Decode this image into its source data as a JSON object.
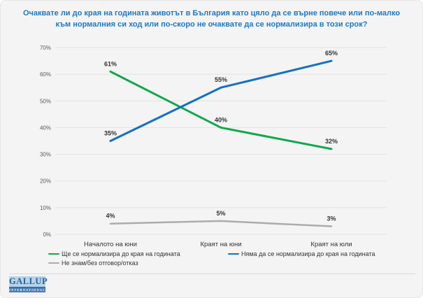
{
  "title": "Очаквате ли до края на годината животът в България като цяло да се върне повече или по-малко към нормалния си ход или по-скоро не очаквате да се нормализира в този срок?",
  "colors": {
    "title": "#1c78c5",
    "background": "#f4f4f4",
    "grid": "#e2e2e2",
    "axis_text": "#595959",
    "label_text": "#333333",
    "divider": "#d8d8d8",
    "series_green": "#0ea84b",
    "series_blue": "#1470c4",
    "series_gray": "#acacac"
  },
  "chart_data": {
    "type": "line",
    "title": "Очаквате ли до края на годината животът в България като цяло да се върне повече или по-малко към нормалния си ход или по-скоро не очаквате да се нормализира в този срок?",
    "categories": [
      "Началото на юни",
      "Краят на юни",
      "Краят на юли"
    ],
    "series": [
      {
        "name": "Ще се нормализира до края на годината",
        "values": [
          61,
          40,
          32
        ],
        "labels": [
          "61%",
          "40%",
          "32%"
        ],
        "color": "#0ea84b"
      },
      {
        "name": "Няма да се нормализира до края на годината",
        "values": [
          35,
          55,
          65
        ],
        "labels": [
          "35%",
          "55%",
          "65%"
        ],
        "color": "#1470c4"
      },
      {
        "name": "Не знам/без отговор/отказ",
        "values": [
          4,
          5,
          3
        ],
        "labels": [
          "4%",
          "5%",
          "3%"
        ],
        "color": "#acacac"
      }
    ],
    "xlabel": "",
    "ylabel": "",
    "ylim": [
      0,
      70
    ],
    "ytick_labels": [
      "0%",
      "10%",
      "20%",
      "30%",
      "40%",
      "50%",
      "60%",
      "70%"
    ],
    "grid": true,
    "legend_position": "bottom"
  },
  "logo": {
    "brand": "GALLUP",
    "sub": "INTERNATIONAL"
  }
}
